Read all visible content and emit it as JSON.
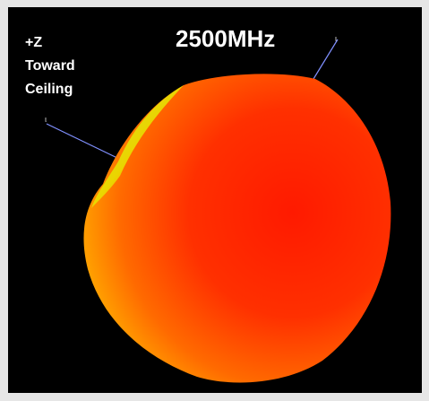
{
  "axis_label": {
    "lines": [
      "+Z",
      "Toward",
      "Ceiling"
    ]
  },
  "title": "2500MHz"
}
